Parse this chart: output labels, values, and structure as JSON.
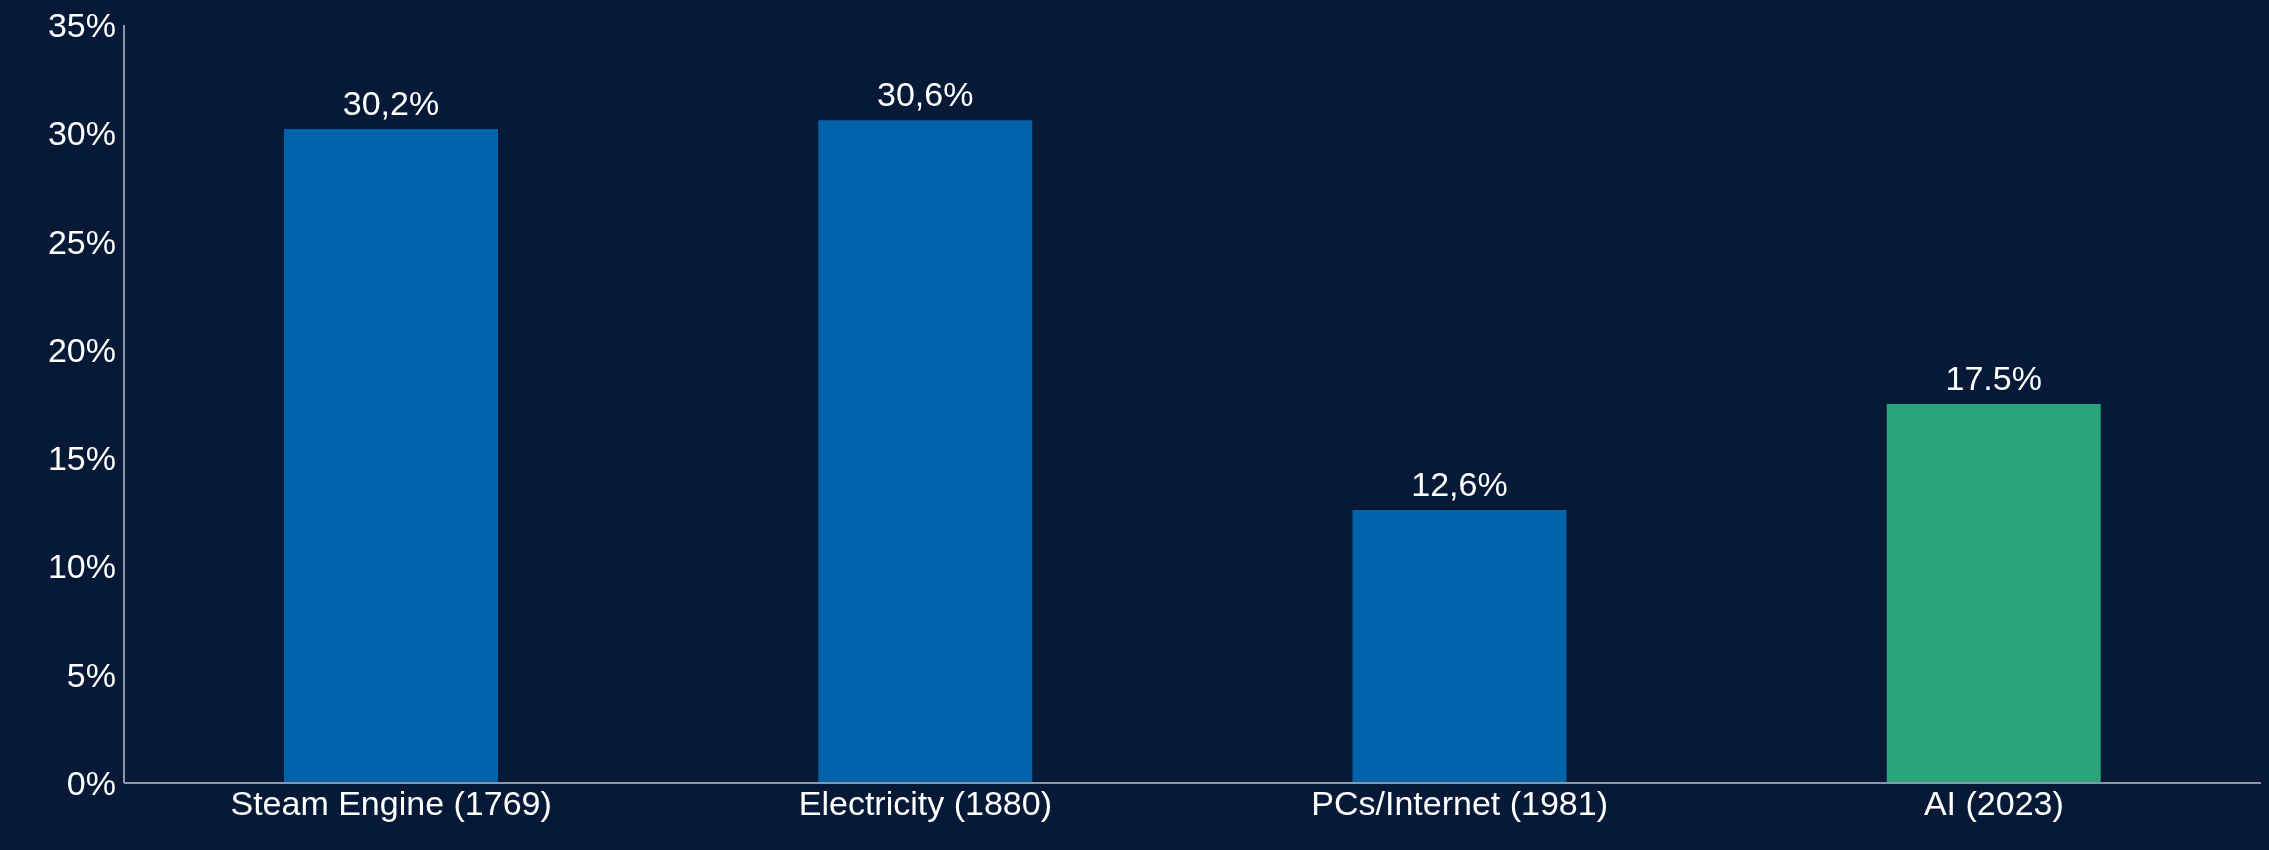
{
  "chart_data": {
    "type": "bar",
    "categories": [
      "Steam Engine (1769)",
      "Electricity (1880)",
      "PCs/Internet (1981)",
      "AI (2023)"
    ],
    "values": [
      30.2,
      30.6,
      12.6,
      17.5
    ],
    "colors": [
      "#0062a8",
      "#0062a8",
      "#0062a8",
      "#2aa57a"
    ],
    "value_labels": [
      "30,2%",
      "30,6%",
      "12,6%",
      "17.5%"
    ],
    "ylim": [
      0,
      35
    ],
    "yticks": [
      {
        "value": 0,
        "label": "0%"
      },
      {
        "value": 5,
        "label": "5%"
      },
      {
        "value": 10,
        "label": "10%"
      },
      {
        "value": 15,
        "label": "15%"
      },
      {
        "value": 20,
        "label": "20%"
      },
      {
        "value": 25,
        "label": "25%"
      },
      {
        "value": 30,
        "label": "30%"
      },
      {
        "value": 35,
        "label": "35%"
      }
    ],
    "grid": false,
    "legend": false
  }
}
